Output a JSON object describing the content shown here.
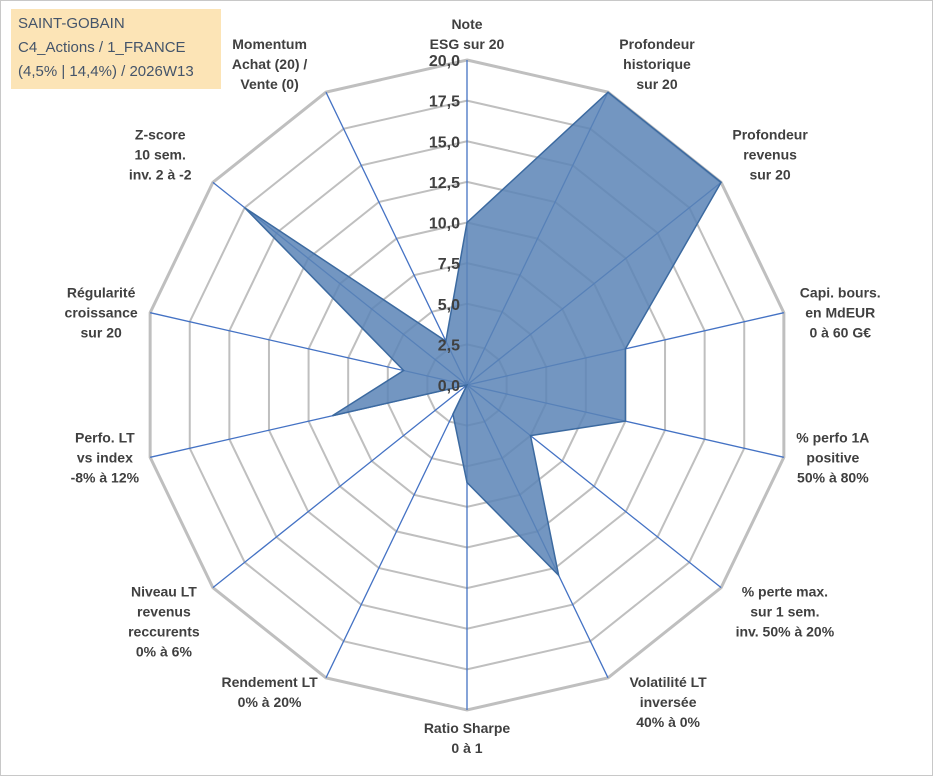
{
  "info": {
    "line1": "SAINT-GOBAIN",
    "line2": "C4_Actions / 1_FRANCE",
    "line3": "(4,5% | 14,4%) / 2026W13"
  },
  "colors": {
    "fill": "#5b84b6",
    "stroke": "#3c6aa0",
    "spokes": "#4472c4",
    "grid": "#bfbfbf",
    "info_bg": "#fce4b6"
  },
  "chart_data": {
    "type": "radar",
    "title": "",
    "rmin": 0,
    "rmax": 20,
    "ticks": [
      "0,0",
      "2,5",
      "5,0",
      "7,5",
      "10,0",
      "12,5",
      "15,0",
      "17,5",
      "20,0"
    ],
    "axes": [
      {
        "lines": [
          "Note",
          "ESG sur 20"
        ],
        "value": 10.0
      },
      {
        "lines": [
          "Profondeur",
          "historique",
          "sur 20"
        ],
        "value": 20.0
      },
      {
        "lines": [
          "Profondeur",
          "revenus",
          "sur 20"
        ],
        "value": 20.0
      },
      {
        "lines": [
          "Capi. bours.",
          "en MdEUR",
          "0 à 60 G€"
        ],
        "value": 10.0
      },
      {
        "lines": [
          "% perfo 1A",
          "positive",
          "50% à 80%"
        ],
        "value": 10.0
      },
      {
        "lines": [
          "% perte max.",
          "sur 1 sem.",
          "inv. 50% à 20%"
        ],
        "value": 5.0
      },
      {
        "lines": [
          "Volatilité LT",
          "inversée",
          "40% à 0%"
        ],
        "value": 13.0
      },
      {
        "lines": [
          "Ratio Sharpe",
          "0 à 1"
        ],
        "value": 6.0
      },
      {
        "lines": [
          "Rendement LT",
          "0% à 20%"
        ],
        "value": 2.0
      },
      {
        "lines": [
          "Niveau LT",
          "revenus",
          "reccurents",
          "0% à 6%"
        ],
        "value": 0.0
      },
      {
        "lines": [
          "Perfo. LT",
          "vs index",
          "-8% à 12%"
        ],
        "value": 8.5
      },
      {
        "lines": [
          "Régularité",
          "croissance",
          "sur 20"
        ],
        "value": 4.0
      },
      {
        "lines": [
          "Z-score",
          "10 sem.",
          "inv. 2 à -2"
        ],
        "value": 17.5
      },
      {
        "lines": [
          "Momentum",
          "Achat (20) /",
          "Vente (0)"
        ],
        "value": 3.0
      }
    ]
  }
}
